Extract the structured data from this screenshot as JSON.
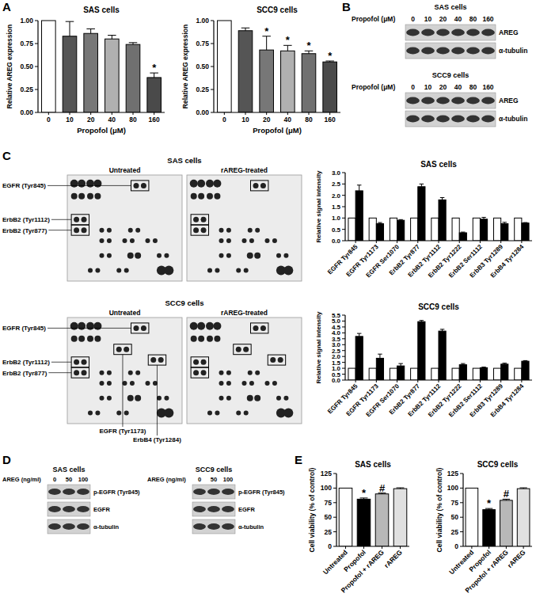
{
  "panel_labels": [
    "A",
    "B",
    "C",
    "D",
    "E"
  ],
  "chart_data": [
    {
      "type": "bar",
      "title": "SAS cells",
      "x_label": "Propofol (μM)",
      "y_label": "Relative AREG expression",
      "categories": [
        0,
        10,
        20,
        40,
        80,
        160
      ],
      "values": [
        1,
        0.83,
        0.86,
        0.8,
        0.74,
        0.38
      ],
      "errors": [
        0,
        0.16,
        0.05,
        0.04,
        0.02,
        0.05
      ],
      "annotations": [
        null,
        null,
        null,
        null,
        null,
        "*"
      ],
      "colors": [
        "#ffffff",
        "#555555",
        "#777777",
        "#b0b0b0",
        "#707070",
        "#4a4a4a"
      ],
      "ylim": [
        0,
        1
      ],
      "yticks": [
        {
          "value": 0,
          "label": "0.00"
        },
        0.25,
        {
          "value": 0.5,
          "label": "0.50"
        },
        0.75,
        {
          "value": 1,
          "label": "1.00"
        }
      ]
    },
    {
      "type": "bar",
      "title": "SCC9 cells",
      "x_label": "Propofol (μM)",
      "y_label": "Relative AREG expression",
      "categories": [
        0,
        10,
        20,
        40,
        80,
        160
      ],
      "values": [
        1,
        0.89,
        0.68,
        0.67,
        0.64,
        0.55
      ],
      "errors": [
        0,
        0.03,
        0.15,
        0.06,
        0.03,
        0.01
      ],
      "annotations": [
        null,
        null,
        "*",
        "*",
        "*",
        "*"
      ],
      "colors": [
        "#ffffff",
        "#555555",
        "#777777",
        "#b0b0b0",
        "#707070",
        "#4a4a4a"
      ],
      "ylim": [
        0,
        1
      ],
      "yticks": [
        {
          "value": 0,
          "label": "0.00"
        },
        0.25,
        {
          "value": 0.5,
          "label": "0.50"
        },
        0.75,
        {
          "value": 1,
          "label": "1.00"
        }
      ]
    },
    {
      "type": "bar",
      "title": "SAS cells",
      "y_label": "Relative signal intensity",
      "categories": [
        "EGFR Tyr845",
        "EGFR Tyr1173",
        "EGFR Ser1070",
        "ErbB2 Tyr877",
        "ErbB2 Tyr1112",
        "ErbB2 Tyr1222",
        "ErbB2 Ser1112",
        "ErbB3 Tyr1289",
        "ErbB4 Tyr1284"
      ],
      "series": [
        {
          "color": "#ffffff",
          "values": [
            1,
            1,
            1,
            1,
            1,
            1,
            1,
            1,
            1
          ],
          "errors": [
            0,
            0,
            0,
            0,
            0,
            0,
            0,
            0,
            0
          ]
        },
        {
          "color": "#000000",
          "values": [
            2.2,
            0.75,
            0.9,
            2.38,
            1.8,
            0.35,
            0.95,
            0.75,
            0.78
          ],
          "errors": [
            0.25,
            0.05,
            0.03,
            0.12,
            0.1,
            0.03,
            0.08,
            0.06,
            0.02
          ]
        }
      ],
      "ylim": [
        0,
        3
      ],
      "yticks": [
        {
          "value": 0,
          "label": "0.0"
        },
        0.5,
        {
          "value": 1,
          "label": "1.0"
        },
        1.5,
        {
          "value": 2,
          "label": "2.0"
        },
        2.5,
        {
          "value": 3,
          "label": "3.0"
        }
      ]
    },
    {
      "type": "bar",
      "title": "SCC9 cells",
      "y_label": "Relative signal intensity",
      "categories": [
        "EGFR Tyr845",
        "EGFR Tyr1173",
        "EGFR Ser1070",
        "ErbB2 Tyr877",
        "ErbB2 Tyr1112",
        "ErbB2 Tyr1222",
        "ErbB2 Ser1112",
        "ErbB3 Tyr1289",
        "ErbB4 Tyr1284"
      ],
      "series": [
        {
          "color": "#ffffff",
          "values": [
            1,
            1,
            1,
            1,
            1,
            1,
            1,
            1,
            1
          ],
          "errors": [
            0,
            0,
            0,
            0,
            0,
            0,
            0,
            0,
            0
          ]
        },
        {
          "color": "#000000",
          "values": [
            3.7,
            1.85,
            1.2,
            4.95,
            4.15,
            1.3,
            1.05,
            1.35,
            1.6
          ],
          "errors": [
            0.25,
            0.35,
            0.2,
            0.1,
            0.15,
            0.1,
            0.05,
            0.08,
            0.05
          ]
        }
      ],
      "ylim": [
        0,
        5.5
      ],
      "yticks": [
        {
          "value": 0,
          "label": "0.0"
        },
        0.5,
        {
          "value": 1,
          "label": "1.0"
        },
        1.5,
        {
          "value": 2,
          "label": "2.0"
        },
        2.5,
        {
          "value": 3,
          "label": "3.0"
        },
        3.5,
        {
          "value": 4,
          "label": "4.0"
        },
        4.5,
        {
          "value": 5,
          "label": "5.0"
        },
        5.5
      ]
    },
    {
      "type": "bar",
      "title": "SAS cells",
      "y_label": "Cell viability (% of control)",
      "categories": [
        "Untreated",
        "Propofol",
        "Propofol + rAREG",
        "rAREG"
      ],
      "values": [
        100,
        81,
        90,
        99
      ],
      "errors": [
        0,
        2,
        1.5,
        1.5
      ],
      "annotations": [
        null,
        "*",
        "#",
        null
      ],
      "colors": [
        "#ffffff",
        "#000000",
        "#b8b8b8",
        "#e0e0e0"
      ],
      "ylim": [
        0,
        125
      ],
      "yticks": [
        0,
        25,
        50,
        75,
        100,
        125
      ]
    },
    {
      "type": "bar",
      "title": "SCC9 cells",
      "y_label": "Cell viability (% of control)",
      "categories": [
        "Untreated",
        "Propofol",
        "Propofol + rAREG",
        "rAREG"
      ],
      "values": [
        100,
        63,
        79,
        99
      ],
      "errors": [
        0,
        2,
        2,
        1.5
      ],
      "annotations": [
        null,
        "*",
        "#",
        null
      ],
      "colors": [
        "#ffffff",
        "#000000",
        "#b8b8b8",
        "#e0e0e0"
      ],
      "ylim": [
        0,
        125
      ],
      "yticks": [
        0,
        25,
        50,
        75,
        100,
        125
      ]
    }
  ],
  "panel_b": {
    "groups": [
      {
        "title": "SAS cells",
        "condition_label": "Propofol (μM)",
        "lanes": [
          0,
          10,
          20,
          40,
          80,
          160
        ],
        "rows": [
          "AREG",
          "α-tubulin"
        ]
      },
      {
        "title": "SCC9 cells",
        "condition_label": "Propofol (μM)",
        "lanes": [
          0,
          10,
          20,
          40,
          80,
          160
        ],
        "rows": [
          "AREG",
          "α-tubulin"
        ]
      }
    ]
  },
  "panel_c_arrays": {
    "groups": [
      {
        "title": "SAS cells",
        "images": [
          "Untreated",
          "rAREG-treated"
        ],
        "callouts": [
          "EGFR (Tyr845)",
          "ErbB2 (Tyr1112)",
          "ErbB2 (Tyr877)"
        ]
      },
      {
        "title": "SCC9 cells",
        "images": [
          "Untreated",
          "rAREG-treated"
        ],
        "callouts": [
          "EGFR (Tyr845)",
          "ErbB2 (Tyr1112)",
          "ErbB2 (Tyr877)",
          "EGFR (Tyr1173)",
          "ErbB4 (Tyr1284)"
        ]
      }
    ]
  },
  "panel_d": {
    "groups": [
      {
        "title": "SAS cells",
        "condition_label": "AREG (ng/ml)",
        "lanes": [
          0,
          50,
          100
        ],
        "rows": [
          "p-EGFR (Tyr845)",
          "EGFR",
          "α-tubulin"
        ]
      },
      {
        "title": "SCC9 cells",
        "condition_label": "AREG (ng/ml)",
        "lanes": [
          0,
          50,
          100
        ],
        "rows": [
          "p-EGFR (Tyr845)",
          "EGFR",
          "α-tubulin"
        ]
      }
    ]
  }
}
